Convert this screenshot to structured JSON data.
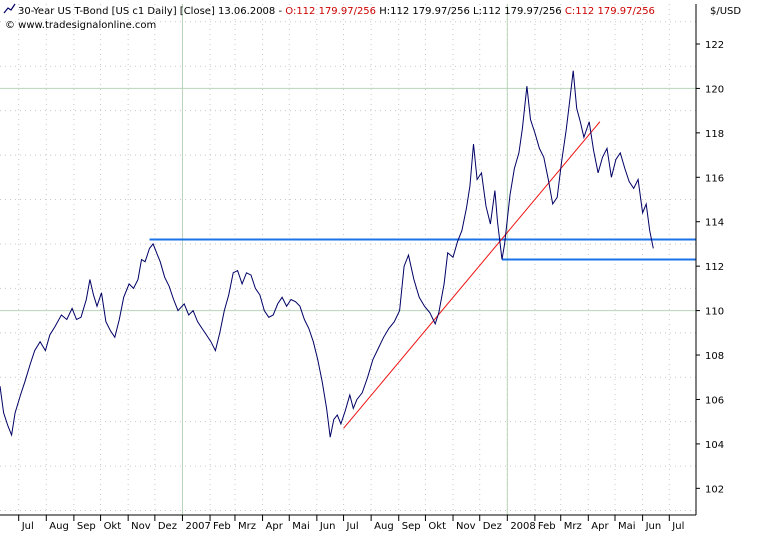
{
  "header": {
    "instrument": "30-Year US T-Bond [US c1  Daily] [Close] 13.06.2008 -",
    "open": "O:112 179.97/256",
    "high": "H:112 179.97/256",
    "low": "L:112 179.97/256",
    "close": "C:112 179.97/256",
    "watermark": "© www.tradesignalonline.com",
    "unit": "$/USD"
  },
  "colors": {
    "price": "#000066",
    "trendline": "#ee1111",
    "horizontal": "#1a73e8",
    "grid": "#b8d4b8",
    "dot": "#c8c8c8",
    "ohlc_values": "#cc0000"
  },
  "chart_data": {
    "type": "line",
    "title": "30-Year US T-Bond [US c1  Daily] [Close]",
    "ylabel": "$/USD",
    "ylim": [
      100.8,
      123.8
    ],
    "y_ticks": [
      102,
      104,
      106,
      108,
      110,
      112,
      114,
      116,
      118,
      120,
      122
    ],
    "x_range": [
      "2006-06-10",
      "2008-07-31"
    ],
    "x_ticks": [
      {
        "date": "2006-07-01",
        "label": "Jul"
      },
      {
        "date": "2006-08-01",
        "label": "Aug"
      },
      {
        "date": "2006-09-01",
        "label": "Sep"
      },
      {
        "date": "2006-10-01",
        "label": "Okt"
      },
      {
        "date": "2006-11-01",
        "label": "Nov"
      },
      {
        "date": "2006-12-01",
        "label": "Dez"
      },
      {
        "date": "2007-01-01",
        "label": "2007"
      },
      {
        "date": "2007-02-01",
        "label": "Feb"
      },
      {
        "date": "2007-03-01",
        "label": "Mrz"
      },
      {
        "date": "2007-04-01",
        "label": "Apr"
      },
      {
        "date": "2007-05-01",
        "label": "Mai"
      },
      {
        "date": "2007-06-01",
        "label": "Jun"
      },
      {
        "date": "2007-07-01",
        "label": "Jul"
      },
      {
        "date": "2007-08-01",
        "label": "Aug"
      },
      {
        "date": "2007-09-01",
        "label": "Sep"
      },
      {
        "date": "2007-10-01",
        "label": "Okt"
      },
      {
        "date": "2007-11-01",
        "label": "Nov"
      },
      {
        "date": "2007-12-01",
        "label": "Dez"
      },
      {
        "date": "2008-01-01",
        "label": "2008"
      },
      {
        "date": "2008-02-01",
        "label": "Feb"
      },
      {
        "date": "2008-03-01",
        "label": "Mrz"
      },
      {
        "date": "2008-04-01",
        "label": "Apr"
      },
      {
        "date": "2008-05-01",
        "label": "Mai"
      },
      {
        "date": "2008-06-01",
        "label": "Jun"
      },
      {
        "date": "2008-07-01",
        "label": "Jul"
      }
    ],
    "grid": true,
    "series": [
      {
        "points": [
          [
            "2006-06-10",
            106.6
          ],
          [
            "2006-06-14",
            105.4
          ],
          [
            "2006-06-19",
            104.8
          ],
          [
            "2006-06-23",
            104.4
          ],
          [
            "2006-06-27",
            105.4
          ],
          [
            "2006-07-03",
            106.2
          ],
          [
            "2006-07-08",
            106.8
          ],
          [
            "2006-07-14",
            107.6
          ],
          [
            "2006-07-19",
            108.2
          ],
          [
            "2006-07-25",
            108.6
          ],
          [
            "2006-07-31",
            108.2
          ],
          [
            "2006-08-05",
            108.9
          ],
          [
            "2006-08-11",
            109.3
          ],
          [
            "2006-08-18",
            109.8
          ],
          [
            "2006-08-24",
            109.6
          ],
          [
            "2006-08-30",
            110.1
          ],
          [
            "2006-09-04",
            109.6
          ],
          [
            "2006-09-09",
            109.7
          ],
          [
            "2006-09-15",
            110.5
          ],
          [
            "2006-09-19",
            111.4
          ],
          [
            "2006-09-23",
            110.7
          ],
          [
            "2006-09-27",
            110.2
          ],
          [
            "2006-10-02",
            110.8
          ],
          [
            "2006-10-07",
            109.5
          ],
          [
            "2006-10-12",
            109.1
          ],
          [
            "2006-10-17",
            108.8
          ],
          [
            "2006-10-22",
            109.6
          ],
          [
            "2006-10-27",
            110.6
          ],
          [
            "2006-11-02",
            111.2
          ],
          [
            "2006-11-07",
            111.0
          ],
          [
            "2006-11-12",
            111.4
          ],
          [
            "2006-11-16",
            112.3
          ],
          [
            "2006-11-20",
            112.2
          ],
          [
            "2006-11-25",
            112.8
          ],
          [
            "2006-11-29",
            113.0
          ],
          [
            "2006-12-03",
            112.6
          ],
          [
            "2006-12-07",
            112.2
          ],
          [
            "2006-12-12",
            111.5
          ],
          [
            "2006-12-17",
            111.1
          ],
          [
            "2006-12-22",
            110.5
          ],
          [
            "2006-12-27",
            110.0
          ],
          [
            "2007-01-03",
            110.3
          ],
          [
            "2007-01-08",
            109.8
          ],
          [
            "2007-01-13",
            110.0
          ],
          [
            "2007-01-18",
            109.5
          ],
          [
            "2007-01-23",
            109.2
          ],
          [
            "2007-01-28",
            108.9
          ],
          [
            "2007-02-02",
            108.6
          ],
          [
            "2007-02-07",
            108.2
          ],
          [
            "2007-02-12",
            109.0
          ],
          [
            "2007-02-17",
            110.0
          ],
          [
            "2007-02-22",
            110.7
          ],
          [
            "2007-02-27",
            111.7
          ],
          [
            "2007-03-04",
            111.8
          ],
          [
            "2007-03-09",
            111.2
          ],
          [
            "2007-03-14",
            111.7
          ],
          [
            "2007-03-19",
            111.6
          ],
          [
            "2007-03-24",
            111.0
          ],
          [
            "2007-03-29",
            110.7
          ],
          [
            "2007-04-03",
            110.0
          ],
          [
            "2007-04-08",
            109.7
          ],
          [
            "2007-04-13",
            109.8
          ],
          [
            "2007-04-18",
            110.3
          ],
          [
            "2007-04-23",
            110.6
          ],
          [
            "2007-04-28",
            110.2
          ],
          [
            "2007-05-03",
            110.5
          ],
          [
            "2007-05-08",
            110.4
          ],
          [
            "2007-05-13",
            110.2
          ],
          [
            "2007-05-18",
            109.6
          ],
          [
            "2007-05-23",
            109.2
          ],
          [
            "2007-05-28",
            108.6
          ],
          [
            "2007-06-02",
            107.8
          ],
          [
            "2007-06-07",
            106.8
          ],
          [
            "2007-06-12",
            105.6
          ],
          [
            "2007-06-16",
            104.3
          ],
          [
            "2007-06-20",
            105.1
          ],
          [
            "2007-06-24",
            105.3
          ],
          [
            "2007-06-28",
            104.9
          ],
          [
            "2007-07-03",
            105.5
          ],
          [
            "2007-07-08",
            106.2
          ],
          [
            "2007-07-12",
            105.6
          ],
          [
            "2007-07-16",
            106.0
          ],
          [
            "2007-07-22",
            106.3
          ],
          [
            "2007-07-28",
            107.0
          ],
          [
            "2007-08-03",
            107.8
          ],
          [
            "2007-08-09",
            108.3
          ],
          [
            "2007-08-15",
            108.8
          ],
          [
            "2007-08-21",
            109.2
          ],
          [
            "2007-08-27",
            109.5
          ],
          [
            "2007-09-02",
            110.0
          ],
          [
            "2007-09-07",
            112.0
          ],
          [
            "2007-09-12",
            112.5
          ],
          [
            "2007-09-18",
            111.4
          ],
          [
            "2007-09-24",
            110.6
          ],
          [
            "2007-09-30",
            110.2
          ],
          [
            "2007-10-06",
            109.9
          ],
          [
            "2007-10-12",
            109.4
          ],
          [
            "2007-10-16",
            109.9
          ],
          [
            "2007-10-22",
            111.2
          ],
          [
            "2007-10-26",
            112.6
          ],
          [
            "2007-11-01",
            112.4
          ],
          [
            "2007-11-06",
            113.1
          ],
          [
            "2007-11-11",
            113.6
          ],
          [
            "2007-11-16",
            114.6
          ],
          [
            "2007-11-20",
            115.6
          ],
          [
            "2007-11-24",
            117.5
          ],
          [
            "2007-11-28",
            115.9
          ],
          [
            "2007-12-03",
            116.2
          ],
          [
            "2007-12-08",
            114.7
          ],
          [
            "2007-12-13",
            113.9
          ],
          [
            "2007-12-18",
            115.4
          ],
          [
            "2007-12-21",
            114.0
          ],
          [
            "2007-12-26",
            112.3
          ],
          [
            "2007-12-29",
            113.0
          ],
          [
            "2008-01-04",
            115.2
          ],
          [
            "2008-01-09",
            116.4
          ],
          [
            "2008-01-14",
            117.1
          ],
          [
            "2008-01-18",
            118.2
          ],
          [
            "2008-01-23",
            120.1
          ],
          [
            "2008-01-27",
            118.6
          ],
          [
            "2008-02-01",
            118.0
          ],
          [
            "2008-02-06",
            117.3
          ],
          [
            "2008-02-11",
            116.9
          ],
          [
            "2008-02-16",
            115.9
          ],
          [
            "2008-02-21",
            114.8
          ],
          [
            "2008-02-26",
            115.1
          ],
          [
            "2008-03-02",
            116.7
          ],
          [
            "2008-03-07",
            118.1
          ],
          [
            "2008-03-11",
            119.4
          ],
          [
            "2008-03-15",
            120.8
          ],
          [
            "2008-03-19",
            119.1
          ],
          [
            "2008-03-23",
            118.5
          ],
          [
            "2008-03-27",
            117.8
          ],
          [
            "2008-04-02",
            118.5
          ],
          [
            "2008-04-07",
            117.2
          ],
          [
            "2008-04-12",
            116.2
          ],
          [
            "2008-04-17",
            116.9
          ],
          [
            "2008-04-22",
            117.3
          ],
          [
            "2008-04-27",
            116.0
          ],
          [
            "2008-05-02",
            116.8
          ],
          [
            "2008-05-07",
            117.1
          ],
          [
            "2008-05-12",
            116.4
          ],
          [
            "2008-05-17",
            115.8
          ],
          [
            "2008-05-22",
            115.5
          ],
          [
            "2008-05-27",
            115.9
          ],
          [
            "2008-06-01",
            114.4
          ],
          [
            "2008-06-05",
            114.8
          ],
          [
            "2008-06-09",
            113.6
          ],
          [
            "2008-06-13",
            112.8
          ]
        ]
      }
    ],
    "trendline": {
      "from": [
        "2007-07-01",
        104.7
      ],
      "to": [
        "2008-04-14",
        118.5
      ]
    },
    "horizontal_lines": [
      {
        "from": "2006-11-25",
        "to": "2008-07-31",
        "value": 113.2
      },
      {
        "from": "2007-12-26",
        "to": "2008-07-31",
        "value": 112.3
      }
    ]
  }
}
